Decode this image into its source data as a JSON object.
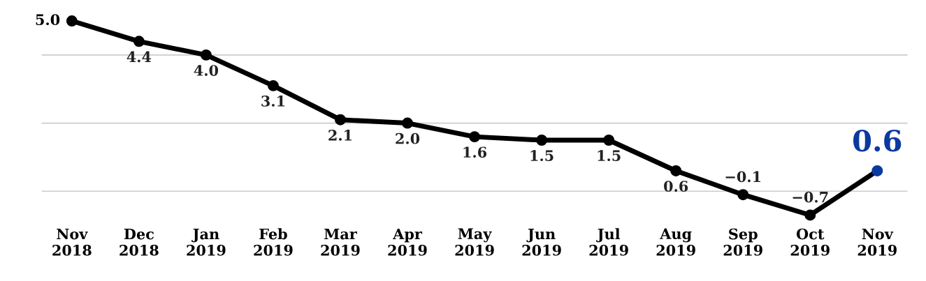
{
  "chart_data": {
    "type": "line",
    "categories": [
      "Nov\n2018",
      "Dec\n2018",
      "Jan\n2019",
      "Feb\n2019",
      "Mar\n2019",
      "Apr\n2019",
      "May\n2019",
      "Jun\n2019",
      "Jul\n2019",
      "Aug\n2019",
      "Sep\n2019",
      "Oct\n2019",
      "Nov\n2019"
    ],
    "series": [
      {
        "color": "#000000",
        "colors": [
          "#000000",
          "#000000",
          "#000000",
          "#000000",
          "#000000",
          "#000000",
          "#000000",
          "#000000",
          "#000000",
          "#000000",
          "#000000",
          "#000000",
          "#0a3aa0"
        ],
        "values": [
          5.0,
          4.4,
          4.0,
          3.1,
          2.1,
          2.0,
          1.6,
          1.5,
          1.5,
          0.6,
          -0.1,
          -0.7,
          0.6
        ],
        "value_labels": [
          "5.0",
          "4.4",
          "4.0",
          "3.1",
          "2.1",
          "2.0",
          "1.6",
          "1.5",
          "1.5",
          "0.6",
          "−0.1",
          "−0.7",
          "0.6"
        ]
      }
    ],
    "marker": "circle",
    "line_style": "solid",
    "grid": "y",
    "tick_labels": "x",
    "yticks": [
      {
        "value": 0,
        "label": null
      },
      {
        "value": 2,
        "label": null
      },
      {
        "value": 4,
        "label": null
      }
    ]
  }
}
